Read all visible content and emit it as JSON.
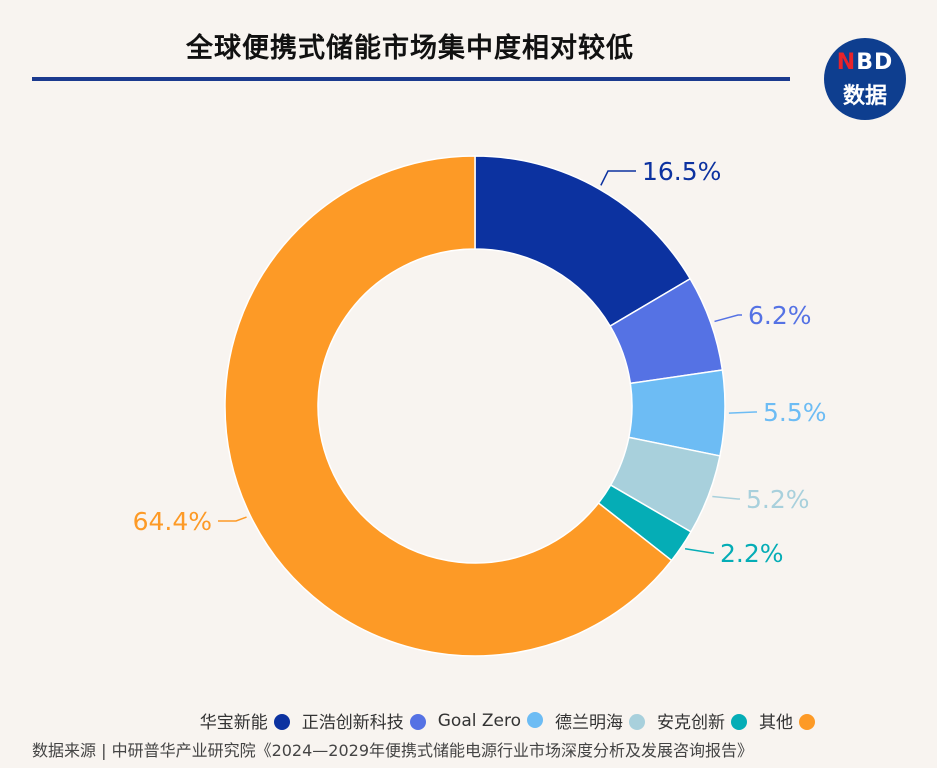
{
  "header": {
    "title": "全球便携式储能市场集中度相对较低"
  },
  "logo": {
    "line1_n": "N",
    "line1_rest": "BD",
    "line2": "数据"
  },
  "source": "数据来源 | 中研普华产业研究院《2024—2029年便携式储能电源行业市场深度分析及发展咨询报告》",
  "chart_data": {
    "type": "pie",
    "title": "",
    "categories": [
      "华宝新能",
      "正浩创新科技",
      "Goal Zero",
      "德兰明海",
      "安克创新",
      "其他"
    ],
    "values": [
      16.5,
      6.2,
      5.5,
      5.2,
      2.2,
      64.4
    ],
    "labels": [
      "16.5%",
      "6.2%",
      "5.5%",
      "5.2%",
      "2.2%",
      "64.4%"
    ],
    "colors": [
      "#0c32a0",
      "#5572e4",
      "#6dbcf4",
      "#a8d0dc",
      "#05adb6",
      "#fd9a26"
    ],
    "legend_position": "bottom-right"
  }
}
